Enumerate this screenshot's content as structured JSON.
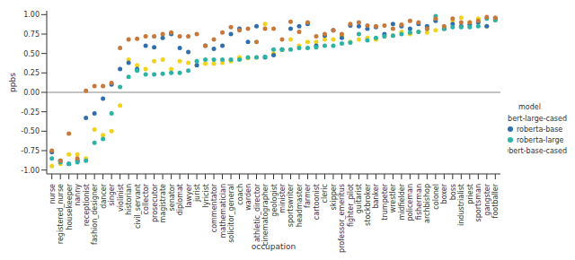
{
  "chart_data": {
    "type": "scatter",
    "x_label": "occupation",
    "y_label": "ppbs",
    "legend_title": "model",
    "legend": "right",
    "categories": [
      "nurse",
      "registered_nurse",
      "housekeeper",
      "nanny",
      "receptionist",
      "fashion_designer",
      "dancer",
      "singer",
      "violinist",
      "historian",
      "civil_servant",
      "collector",
      "prosecutor",
      "magistrate",
      "senator",
      "diplomat",
      "lawyer",
      "jurist",
      "lyricist",
      "commentator",
      "mathematician",
      "solicitor_general",
      "coach",
      "warden",
      "athletic_director",
      "cinematographer",
      "geologist",
      "minister",
      "sportswriter",
      "headmaster",
      "farmer",
      "cartoonist",
      "cleric",
      "skipper",
      "professor_emeritus",
      "fighter_pilot",
      "guitarist",
      "stockbroker",
      "banker",
      "trumpeter",
      "wrestler",
      "midfielder",
      "policeman",
      "fisherman",
      "archbishop",
      "colonel",
      "boxer",
      "boss",
      "industrialist",
      "priest",
      "sportsman",
      "gangster",
      "footballer"
    ],
    "series": [
      {
        "name": "bert-large-cased",
        "color": "#f2d21b",
        "values": [
          -0.95,
          -0.92,
          -0.8,
          -0.8,
          -0.85,
          -0.48,
          -0.55,
          -0.5,
          -0.17,
          0.42,
          0.35,
          0.3,
          0.4,
          0.42,
          0.3,
          0.4,
          0.38,
          0.35,
          0.37,
          0.37,
          0.38,
          0.4,
          0.45,
          0.44,
          0.45,
          0.88,
          0.5,
          0.55,
          0.68,
          0.6,
          0.65,
          0.65,
          0.68,
          0.68,
          0.72,
          0.65,
          0.68,
          0.7,
          0.68,
          0.72,
          0.73,
          0.78,
          0.75,
          0.78,
          0.77,
          0.8,
          0.82,
          0.92,
          0.96,
          0.9,
          0.95,
          0.85,
          0.93
        ]
      },
      {
        "name": "roberta-base",
        "color": "#2f6fae",
        "values": [
          -0.77,
          -0.88,
          -0.92,
          -0.88,
          -0.33,
          -0.27,
          -0.08,
          0.1,
          0.3,
          0.38,
          0.3,
          0.6,
          0.58,
          0.7,
          0.75,
          0.57,
          0.52,
          0.35,
          0.6,
          0.56,
          0.6,
          0.75,
          0.82,
          0.65,
          0.85,
          0.45,
          0.48,
          0.55,
          0.82,
          0.85,
          0.88,
          0.6,
          0.73,
          0.8,
          0.7,
          0.86,
          0.85,
          0.82,
          0.84,
          0.75,
          0.88,
          0.85,
          0.82,
          0.88,
          0.85,
          0.92,
          0.82,
          0.88,
          0.85,
          0.87,
          0.9,
          0.85,
          0.95
        ]
      },
      {
        "name": "roberta-large",
        "color": "#2bb3a6",
        "values": [
          -0.85,
          -0.9,
          -0.92,
          -0.9,
          -0.88,
          -0.65,
          -0.6,
          -0.27,
          0.07,
          0.2,
          0.28,
          0.23,
          0.23,
          0.24,
          0.25,
          0.25,
          0.28,
          0.4,
          0.42,
          0.42,
          0.42,
          0.42,
          0.42,
          0.45,
          0.45,
          0.46,
          0.55,
          0.55,
          0.55,
          0.57,
          0.57,
          0.58,
          0.6,
          0.6,
          0.63,
          0.64,
          0.75,
          0.67,
          0.7,
          0.72,
          0.73,
          0.75,
          0.77,
          0.78,
          0.82,
          0.98,
          0.82,
          0.84,
          0.84,
          0.84,
          0.85,
          0.95,
          0.93
        ]
      },
      {
        "name": "bert-base-cased",
        "color": "#c8783a",
        "values": [
          -0.75,
          -0.88,
          -0.53,
          -0.85,
          0.02,
          0.08,
          0.08,
          0.12,
          0.57,
          0.68,
          0.69,
          0.72,
          0.72,
          0.75,
          0.77,
          0.72,
          0.72,
          0.75,
          0.6,
          0.68,
          0.77,
          0.84,
          0.8,
          0.82,
          0.65,
          0.82,
          0.82,
          0.68,
          0.91,
          0.78,
          0.9,
          0.72,
          0.75,
          0.8,
          0.75,
          0.88,
          0.9,
          0.86,
          0.85,
          0.86,
          0.82,
          0.87,
          0.92,
          0.9,
          0.82,
          0.95,
          0.85,
          0.95,
          0.9,
          0.9,
          0.92,
          0.97,
          0.96
        ]
      }
    ],
    "ylim": [
      -1.05,
      1.05
    ],
    "yticks": [
      {
        "value": -1,
        "label": "-1.00"
      },
      {
        "value": -0.75,
        "label": "-0.75"
      },
      {
        "value": -0.5,
        "label": "-0.50"
      },
      {
        "value": -0.25,
        "label": "-0.25"
      },
      {
        "value": 0,
        "label": "0.00"
      },
      {
        "value": 0.25,
        "label": "0.25"
      },
      {
        "value": 0.5,
        "label": "0.50"
      },
      {
        "value": 0.75,
        "label": "0.75"
      },
      {
        "value": 1,
        "label": "1.00"
      }
    ],
    "reference_line": 0
  }
}
